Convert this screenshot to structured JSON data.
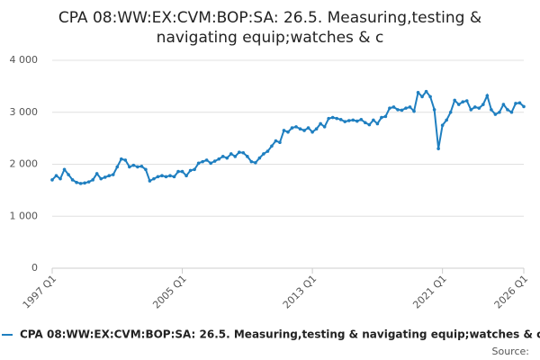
{
  "chart_data": {
    "type": "line",
    "title": [
      "CPA 08:WW:EX:CVM:BOP:SA: 26.5. Measuring,testing &",
      "navigating equip;watches & c"
    ],
    "categories": [
      "1997 Q1",
      null,
      null,
      null,
      null,
      null,
      null,
      null,
      null,
      null,
      null,
      null,
      null,
      null,
      null,
      null,
      null,
      null,
      null,
      null,
      null,
      null,
      null,
      null,
      null,
      null,
      null,
      null,
      null,
      null,
      null,
      null,
      "2005 Q1",
      null,
      null,
      null,
      null,
      null,
      null,
      null,
      null,
      null,
      null,
      null,
      null,
      null,
      null,
      null,
      null,
      null,
      null,
      null,
      null,
      null,
      null,
      null,
      null,
      null,
      null,
      null,
      null,
      null,
      null,
      null,
      "2013 Q1",
      null,
      null,
      null,
      null,
      null,
      null,
      null,
      null,
      null,
      null,
      null,
      null,
      null,
      null,
      null,
      null,
      null,
      null,
      null,
      null,
      null,
      null,
      null,
      null,
      null,
      null,
      null,
      null,
      null,
      null,
      null,
      "2021 Q1",
      null,
      null,
      null,
      null,
      null,
      null,
      null,
      null,
      null,
      null,
      null,
      null,
      null,
      null,
      null,
      null,
      null,
      null,
      null,
      "2026 Q1"
    ],
    "series": [
      {
        "name": "CPA 08:WW:EX:CVM:BOP:SA: 26.5. Measuring,testing & navigating equip;watches & c",
        "color": "#1f7fc0",
        "values": [
          1700,
          1780,
          1720,
          1900,
          1800,
          1700,
          1650,
          1630,
          1640,
          1660,
          1700,
          1820,
          1720,
          1750,
          1780,
          1800,
          1950,
          2100,
          2080,
          1950,
          1980,
          1950,
          1960,
          1900,
          1680,
          1720,
          1760,
          1780,
          1760,
          1780,
          1760,
          1860,
          1860,
          1780,
          1880,
          1900,
          2020,
          2050,
          2080,
          2020,
          2060,
          2100,
          2150,
          2120,
          2200,
          2150,
          2230,
          2220,
          2150,
          2050,
          2030,
          2120,
          2200,
          2250,
          2350,
          2450,
          2420,
          2650,
          2620,
          2700,
          2720,
          2680,
          2650,
          2700,
          2620,
          2680,
          2780,
          2720,
          2880,
          2900,
          2880,
          2860,
          2820,
          2840,
          2850,
          2830,
          2860,
          2800,
          2760,
          2850,
          2780,
          2900,
          2920,
          3080,
          3100,
          3050,
          3040,
          3080,
          3100,
          3020,
          3380,
          3300,
          3400,
          3300,
          3050,
          2300,
          2750,
          2850,
          3000,
          3230,
          3150,
          3200,
          3220,
          3050,
          3100,
          3080,
          3150,
          3320,
          3050,
          2960,
          3000,
          3150,
          3050,
          3000,
          3170,
          3180,
          3110
        ]
      }
    ],
    "ylim": [
      0,
      4000
    ],
    "yticks": [
      0,
      {
        "value": 1000,
        "label": "1 000"
      },
      {
        "value": 2000,
        "label": "2 000"
      },
      {
        "value": 3000,
        "label": "3 000"
      },
      {
        "value": 4000,
        "label": "4 000"
      }
    ],
    "grid": true,
    "source": "Source:"
  }
}
